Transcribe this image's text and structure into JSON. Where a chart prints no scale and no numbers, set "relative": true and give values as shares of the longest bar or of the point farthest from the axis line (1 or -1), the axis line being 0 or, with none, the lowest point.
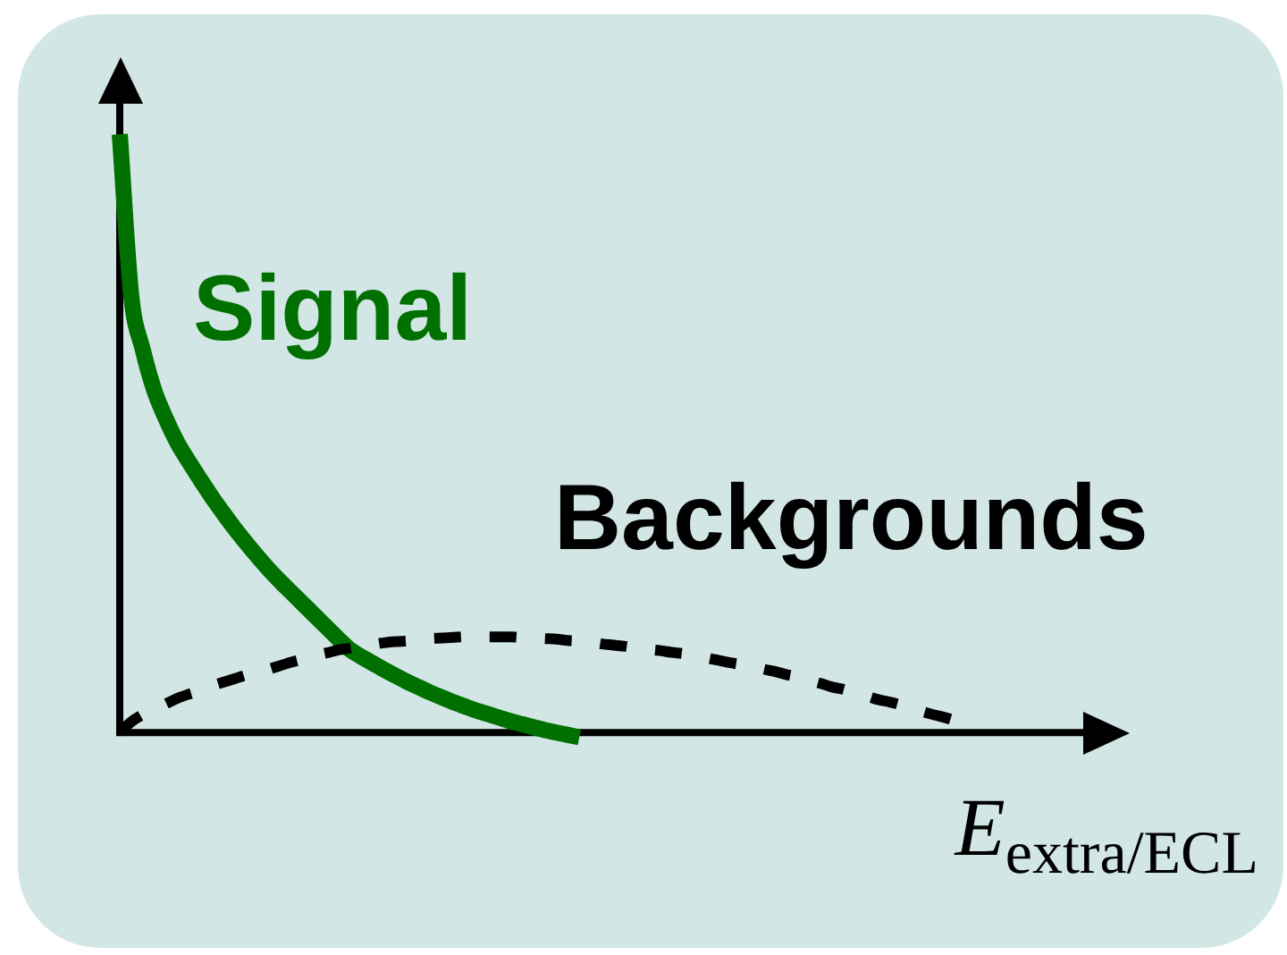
{
  "chart_data": {
    "type": "line",
    "relative": true,
    "xlabel": "E$_{extra/ECL}$",
    "legend": false,
    "grid": false,
    "tick_labels": false,
    "marker": "none",
    "categories": [
      null,
      null,
      null,
      null,
      null,
      null,
      null,
      null,
      null,
      null,
      null,
      null,
      null,
      null,
      null,
      null,
      null,
      null,
      null,
      null,
      null,
      null,
      null,
      null,
      null,
      null,
      null,
      null,
      null,
      null,
      null,
      null,
      null,
      null,
      null,
      null,
      null,
      null,
      null,
      null,
      null,
      null,
      null,
      null,
      null,
      null,
      null,
      null,
      null,
      null,
      null,
      null,
      null,
      null,
      null,
      null,
      null,
      null,
      null,
      null,
      null,
      null,
      null,
      null,
      null,
      null,
      null,
      null,
      null,
      null,
      null,
      null,
      null,
      null,
      null,
      null,
      null,
      null,
      null,
      null,
      null,
      null,
      null,
      null,
      null
    ],
    "series": [
      {
        "name": "Signal",
        "color": "#007000",
        "line_style": "solid",
        "values": [
          1,
          0.73,
          0.64,
          0.572,
          0.525,
          0.485,
          0.453,
          0.423,
          0.394,
          0.367,
          0.341,
          0.317,
          0.294,
          0.272,
          0.252,
          0.233,
          0.214,
          0.195,
          0.176,
          0.157,
          0.139,
          0.127,
          0.116,
          0.105,
          0.095,
          0.085,
          0.076,
          0.067,
          0.059,
          0.051,
          0.044,
          0.037,
          0.031,
          0.025,
          0.019,
          0.014,
          0.009,
          0.004,
          0,
          -0.004,
          -0.008,
          null,
          null,
          null,
          null,
          null,
          null,
          null,
          null,
          null,
          null,
          null,
          null,
          null,
          null,
          null,
          null,
          null,
          null,
          null,
          null,
          null,
          null,
          null,
          null,
          null,
          null,
          null,
          null,
          null,
          null,
          null,
          null,
          null,
          null,
          null,
          null,
          null,
          null,
          null,
          null,
          null,
          null,
          null,
          null
        ]
      },
      {
        "name": "Backgrounds",
        "color": "#000000",
        "line_style": "dashed",
        "values": [
          0,
          0.018,
          0.03,
          0.039,
          0.048,
          0.057,
          0.064,
          0.07,
          0.078,
          0.084,
          0.09,
          0.096,
          0.1,
          0.106,
          0.112,
          0.118,
          0.123,
          0.129,
          0.133,
          0.138,
          0.141,
          0.144,
          0.147,
          0.15,
          0.152,
          0.153,
          0.155,
          0.157,
          0.158,
          0.159,
          0.16,
          0.16,
          0.16,
          0.16,
          0.16,
          0.159,
          0.158,
          0.157,
          0.156,
          0.154,
          0.153,
          0.151,
          0.148,
          0.146,
          0.144,
          0.141,
          0.139,
          0.137,
          0.134,
          0.132,
          0.129,
          0.125,
          0.121,
          0.117,
          0.114,
          0.111,
          0.106,
          0.102,
          0.097,
          0.093,
          0.087,
          0.082,
          0.076,
          0.072,
          0.066,
          0.061,
          0.055,
          0.051,
          0.046,
          0.04,
          0.034,
          0.029,
          0.024,
          0.018,
          0.012,
          null,
          null,
          null,
          null,
          null,
          null,
          null,
          null,
          null,
          null
        ]
      }
    ]
  }
}
